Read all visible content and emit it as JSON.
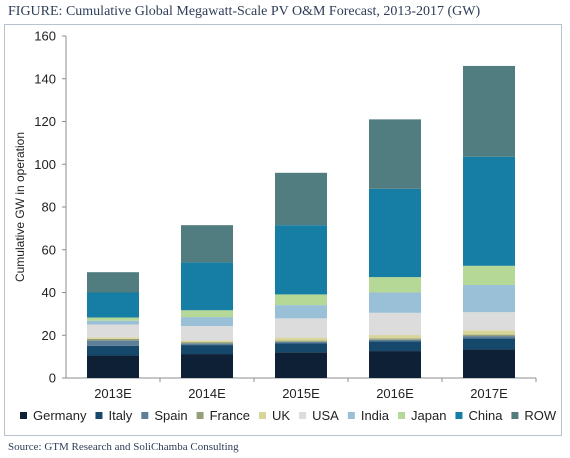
{
  "figure_title": "FIGURE:  Cumulative Global Megawatt-Scale PV O&M Forecast, 2013-2017 (GW)",
  "source": "Source:  GTM Research and SoliChamba Consulting",
  "chart_data": {
    "type": "bar",
    "stacked": true,
    "ylabel": "Cumulative GW in operation",
    "ylim": [
      0,
      160
    ],
    "yticks": [
      0,
      20,
      40,
      60,
      80,
      100,
      120,
      140,
      160
    ],
    "grid": false,
    "legend_position": "bottom",
    "categories": [
      "2013E",
      "2014E",
      "2015E",
      "2016E",
      "2017E"
    ],
    "series": [
      {
        "name": "Germany",
        "color": "#0e2036",
        "values": [
          10.5,
          11.2,
          12.0,
          12.6,
          13.3
        ]
      },
      {
        "name": "Italy",
        "color": "#15486b",
        "values": [
          4.5,
          4.2,
          4.3,
          4.5,
          5.3
        ]
      },
      {
        "name": "Spain",
        "color": "#5e7f98",
        "values": [
          2.5,
          0.8,
          0.6,
          0.8,
          1.0
        ]
      },
      {
        "name": "France",
        "color": "#94a07a",
        "values": [
          0.8,
          0.6,
          0.6,
          0.6,
          0.7
        ]
      },
      {
        "name": "UK",
        "color": "#d8d59a",
        "values": [
          0.7,
          0.7,
          1.4,
          1.6,
          2.0
        ]
      },
      {
        "name": "USA",
        "color": "#dcdcdc",
        "values": [
          6.0,
          6.8,
          9.0,
          10.4,
          8.5
        ]
      },
      {
        "name": "India",
        "color": "#99c0d6",
        "values": [
          1.8,
          4.2,
          6.2,
          9.5,
          12.7
        ]
      },
      {
        "name": "Japan",
        "color": "#b6d897",
        "values": [
          1.5,
          3.2,
          5.0,
          7.2,
          9.0
        ]
      },
      {
        "name": "China",
        "color": "#167ea5",
        "values": [
          11.7,
          22.3,
          32.4,
          41.3,
          51.0
        ]
      },
      {
        "name": "ROW",
        "color": "#527d80",
        "values": [
          9.5,
          17.5,
          24.5,
          32.5,
          42.5
        ]
      }
    ]
  }
}
